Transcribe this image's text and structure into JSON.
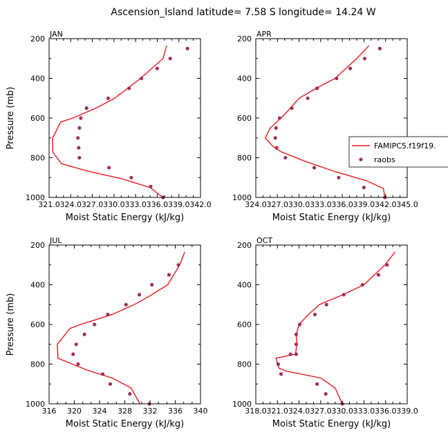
{
  "figure_title": "Ascension_Island   latitude= 7.58 S longitude= 14.24 W",
  "colors": {
    "model": "#e41a1c",
    "obs": "#a0305a",
    "axis": "#000000"
  },
  "chart_data": [
    {
      "type": "line",
      "panel": "JAN",
      "title": "JAN",
      "xlabel": "Moist Static Energy (kJ/kg)",
      "ylabel": "Pressure (mb)",
      "xlim": [
        321.0,
        342.0
      ],
      "ylim": [
        1000,
        200
      ],
      "xticks": [
        321.0,
        324.0,
        327.0,
        330.0,
        333.0,
        336.0,
        339.0,
        342.0
      ],
      "xticklabels": [
        "321.0",
        "324.0",
        "327.0",
        "330.0",
        "333.0",
        "336.0",
        "339.0",
        "342.0"
      ],
      "yticks": [
        200,
        400,
        600,
        800,
        1000
      ],
      "yticklabels": [
        "200",
        "400",
        "600",
        "800",
        "1000"
      ],
      "series": [
        {
          "name": "FAMIPC5.f19f19.",
          "kind": "line",
          "x": [
            337.3,
            336.8,
            333.7,
            330.1,
            327.5,
            324.3,
            322.6,
            321.5,
            321.5,
            322.7,
            326.6,
            331.0,
            335.0,
            336.8
          ],
          "y": [
            235,
            300,
            400,
            500,
            550,
            600,
            620,
            700,
            770,
            830,
            870,
            905,
            950,
            1000
          ]
        },
        {
          "name": "raobs",
          "kind": "scatter",
          "x": [
            340.2,
            337.8,
            336.0,
            333.8,
            332.1,
            329.2,
            326.2,
            325.4,
            325.2,
            325.0,
            325.1,
            325.2,
            329.3,
            332.4,
            335.1,
            336.8
          ],
          "y": [
            250,
            300,
            350,
            400,
            450,
            500,
            550,
            600,
            650,
            700,
            750,
            800,
            850,
            900,
            945,
            1000
          ]
        }
      ]
    },
    {
      "type": "line",
      "panel": "APR",
      "title": "APR",
      "xlabel": "Moist Static Energy (kJ/kg)",
      "ylabel": "",
      "xlim": [
        324.0,
        345.0
      ],
      "ylim": [
        1000,
        200
      ],
      "xticks": [
        324.0,
        327.0,
        330.0,
        333.0,
        336.0,
        339.0,
        342.0,
        345.0
      ],
      "xticklabels": [
        "324.0",
        "327.0",
        "330.0",
        "333.0",
        "336.0",
        "339.0",
        "342.0",
        "345.0"
      ],
      "yticks": [
        200,
        400,
        600,
        800,
        1000
      ],
      "yticklabels": [
        "200",
        "400",
        "600",
        "800",
        "1000"
      ],
      "legend": {
        "placement": "right",
        "entries": [
          "FAMIPC5.f19f19.",
          "raobs"
        ]
      },
      "series": [
        {
          "name": "FAMIPC5.f19f19.",
          "kind": "line",
          "x": [
            339.7,
            338.0,
            335.0,
            332.4,
            330.0,
            328.8,
            327.5,
            326.0,
            325.3,
            326.3,
            327.5,
            331.0,
            335.0,
            339.3,
            341.7,
            341.9
          ],
          "y": [
            235,
            300,
            400,
            450,
            500,
            550,
            600,
            650,
            700,
            740,
            770,
            820,
            870,
            915,
            955,
            1000
          ]
        },
        {
          "name": "raobs",
          "kind": "scatter",
          "x": [
            341.2,
            339.1,
            337.1,
            335.2,
            332.5,
            331.2,
            329.0,
            327.3,
            326.8,
            326.7,
            326.9,
            328.1,
            332.1,
            335.5,
            339.0,
            341.9
          ],
          "y": [
            250,
            300,
            350,
            400,
            450,
            500,
            550,
            600,
            650,
            700,
            750,
            800,
            850,
            900,
            950,
            1000
          ]
        }
      ]
    },
    {
      "type": "line",
      "panel": "JUL",
      "title": "JUL",
      "xlabel": "Moist Static Energy (kJ/kg)",
      "ylabel": "Pressure (mb)",
      "xlim": [
        316,
        340
      ],
      "ylim": [
        1000,
        200
      ],
      "xticks": [
        316,
        320,
        324,
        328,
        332,
        336,
        340
      ],
      "xticklabels": [
        "316",
        "320",
        "324",
        "328",
        "332",
        "336",
        "340"
      ],
      "yticks": [
        200,
        400,
        600,
        800,
        1000
      ],
      "yticklabels": [
        "200",
        "400",
        "600",
        "800",
        "1000"
      ],
      "series": [
        {
          "name": "FAMIPC5.f19f19.",
          "kind": "line",
          "x": [
            337.5,
            336.7,
            334.8,
            332.3,
            329.5,
            326.0,
            321.0,
            319.3,
            317.3,
            317.4,
            322.0,
            326.0,
            329.0,
            330.4
          ],
          "y": [
            235,
            300,
            400,
            450,
            500,
            550,
            600,
            620,
            700,
            770,
            830,
            870,
            920,
            1000
          ]
        },
        {
          "name": "raobs",
          "kind": "scatter",
          "x": [
            336.5,
            335.0,
            332.3,
            330.3,
            328.2,
            325.3,
            323.2,
            321.6,
            320.3,
            319.8,
            320.6,
            324.5,
            325.7,
            328.8,
            331.9
          ],
          "y": [
            300,
            350,
            400,
            450,
            500,
            550,
            600,
            650,
            700,
            750,
            800,
            850,
            900,
            950,
            1000
          ]
        }
      ]
    },
    {
      "type": "line",
      "panel": "OCT",
      "title": "OCT",
      "xlabel": "Moist Static Energy (kJ/kg)",
      "ylabel": "",
      "xlim": [
        318.0,
        339.0
      ],
      "ylim": [
        1000,
        200
      ],
      "xticks": [
        318.0,
        321.0,
        324.0,
        327.0,
        330.0,
        333.0,
        336.0,
        339.0
      ],
      "xticklabels": [
        "318.0",
        "321.0",
        "324.0",
        "327.0",
        "330.0",
        "333.0",
        "336.0",
        "339.0"
      ],
      "yticks": [
        200,
        400,
        600,
        800,
        1000
      ],
      "yticklabels": [
        "200",
        "400",
        "600",
        "800",
        "1000"
      ],
      "series": [
        {
          "name": "FAMIPC5.f19f19.",
          "kind": "line",
          "x": [
            337.3,
            335.9,
            333.0,
            330.1,
            326.8,
            325.3,
            324.0,
            323.6,
            323.7,
            323.5,
            320.8,
            321.2,
            322.2,
            327.0,
            329.0,
            330.0
          ],
          "y": [
            235,
            300,
            400,
            450,
            500,
            550,
            600,
            650,
            700,
            750,
            770,
            820,
            835,
            870,
            920,
            1000
          ]
        },
        {
          "name": "raobs",
          "kind": "scatter",
          "x": [
            336.2,
            335.0,
            332.8,
            330.2,
            327.8,
            326.2,
            324.1,
            323.6,
            323.6,
            323.6,
            322.8,
            321.1,
            321.5,
            326.5,
            327.7,
            330.0
          ],
          "y": [
            300,
            350,
            400,
            450,
            500,
            550,
            600,
            650,
            700,
            750,
            750,
            800,
            850,
            900,
            950,
            1000
          ]
        }
      ]
    }
  ]
}
